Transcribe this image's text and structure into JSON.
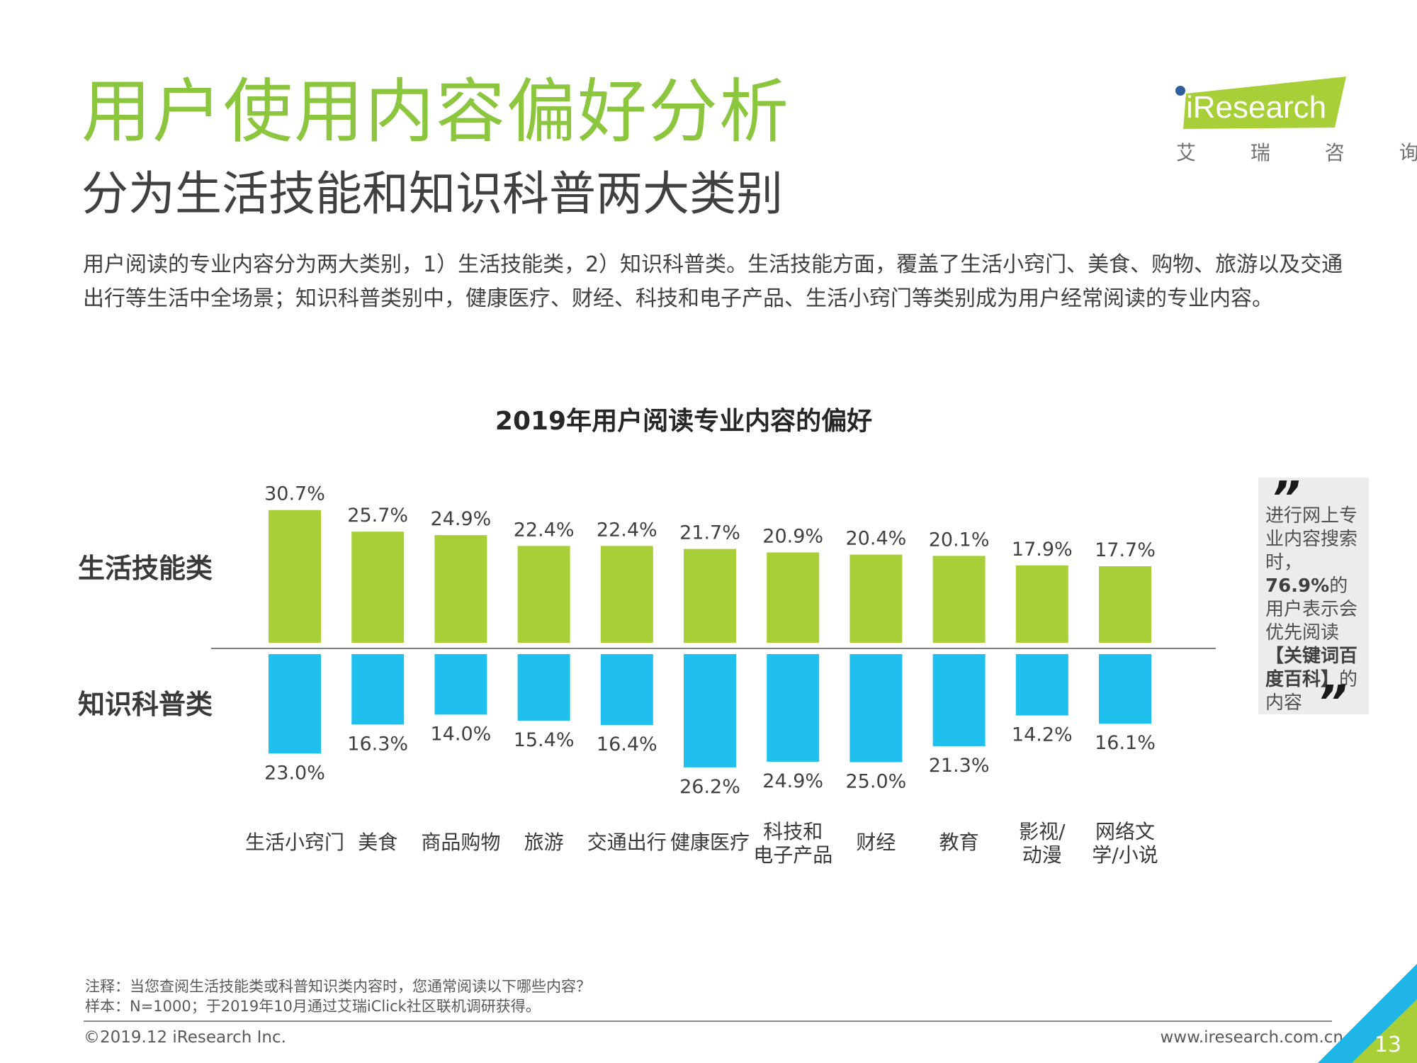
{
  "header": {
    "title": "用户使用内容偏好分析",
    "subtitle": "分为生活技能和知识科普两大类别"
  },
  "logo": {
    "name": "iResearch",
    "subtitle": "艾 瑞 咨 询"
  },
  "description": "用户阅读的专业内容分为两大类别，1）生活技能类，2）知识科普类。生活技能方面，覆盖了生活小窍门、美食、购物、旅游以及交通出行等生活中全场景；知识科普类别中，健康医疗、财经、科技和电子产品、生活小窍门等类别成为用户经常阅读的专业内容。",
  "chart_data": {
    "type": "bar",
    "title": "2019年用户阅读专业内容的偏好",
    "categories": [
      [
        "生活小窍门"
      ],
      [
        "美食"
      ],
      [
        "商品购物"
      ],
      [
        "旅游"
      ],
      [
        "交通出行"
      ],
      [
        "健康医疗"
      ],
      [
        "科技和",
        "电子产品"
      ],
      [
        "财经"
      ],
      [
        "教育"
      ],
      [
        "影视/",
        "动漫"
      ],
      [
        "网络文",
        "学/小说"
      ]
    ],
    "series": [
      {
        "name": "生活技能类",
        "color": "#a8cf38",
        "direction": "up",
        "values": [
          30.7,
          25.7,
          24.9,
          22.4,
          22.4,
          21.7,
          20.9,
          20.4,
          20.1,
          17.9,
          17.7
        ]
      },
      {
        "name": "知识科普类",
        "color": "#1fc0ee",
        "direction": "down",
        "values": [
          23.0,
          16.3,
          14.0,
          15.4,
          16.4,
          26.2,
          24.9,
          25.0,
          21.3,
          14.2,
          16.1
        ]
      }
    ],
    "value_suffix": "%"
  },
  "callout": {
    "open_quote": "”",
    "close_quote": "”",
    "text_before": "进行网上专业内容搜索时，",
    "highlight_value": "76.9%",
    "text_middle": "的用户表示会优先阅读",
    "highlight_keyword": "【关键词百度百科】",
    "text_after": "的内容"
  },
  "notes": {
    "line1": "注释：当您查阅生活技能类或科普知识类内容时，您通常阅读以下哪些内容？",
    "line2": "样本：N=1000；于2019年10月通过艾瑞iClick社区联机调研获得。"
  },
  "footer": {
    "copyright": "©2019.12 iResearch Inc.",
    "website": "www.iresearch.com.cn",
    "page_number": "13"
  }
}
